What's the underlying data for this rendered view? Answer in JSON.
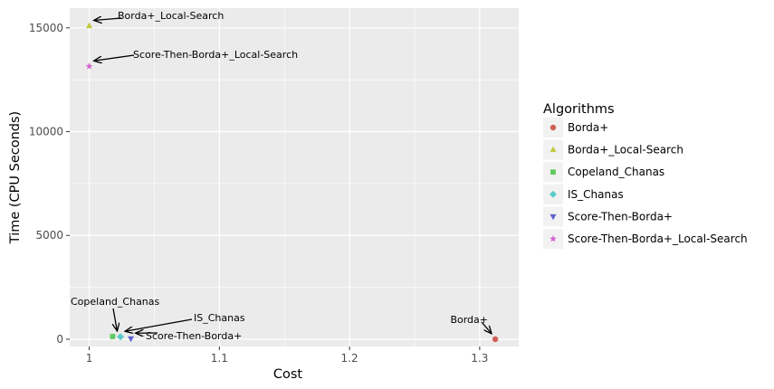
{
  "chart_data": {
    "type": "scatter",
    "xlabel": "Cost",
    "ylabel": "Time (CPU Seconds)",
    "xlim": [
      0.985,
      1.33
    ],
    "ylim": [
      -350,
      15950
    ],
    "x_ticks": [
      1,
      1.1,
      1.2,
      1.3
    ],
    "x_tick_labels": [
      "1",
      "1.1",
      "1.2",
      "1.3"
    ],
    "y_ticks": [
      0,
      5000,
      10000,
      15000
    ],
    "y_tick_labels": [
      "0",
      "5000",
      "10000",
      "15000"
    ],
    "grid": true,
    "legend": {
      "title": "Algorithms",
      "placement": "right"
    },
    "series": [
      {
        "name": "Borda+",
        "color": "#d15f56",
        "shape": "circle",
        "x": 1.312,
        "y": 0
      },
      {
        "name": "Borda+_Local-Search",
        "color": "#c3c93d",
        "shape": "triangle-up",
        "x": 1.0,
        "y": 15100
      },
      {
        "name": "Copeland_Chanas",
        "color": "#5ec95f",
        "shape": "square",
        "x": 1.018,
        "y": 130
      },
      {
        "name": "IS_Chanas",
        "color": "#5bcbc9",
        "shape": "diamond",
        "x": 1.024,
        "y": 120
      },
      {
        "name": "Score-Then-Borda+",
        "color": "#6062cf",
        "shape": "triangle-down",
        "x": 1.032,
        "y": 30
      },
      {
        "name": "Score-Then-Borda+_Local-Search",
        "color": "#d463cf",
        "shape": "star",
        "x": 1.0,
        "y": 13150
      }
    ],
    "annotations": [
      {
        "text": "Borda+_Local-Search",
        "point_index": 1
      },
      {
        "text": "Score-Then-Borda+_Local-Search",
        "point_index": 5
      },
      {
        "text": "Copeland_Chanas",
        "point_index": 2
      },
      {
        "text": "IS_Chanas",
        "point_index": 3
      },
      {
        "text": "Score-Then-Borda+",
        "point_index": 4
      },
      {
        "text": "Borda+",
        "point_index": 0
      }
    ]
  }
}
